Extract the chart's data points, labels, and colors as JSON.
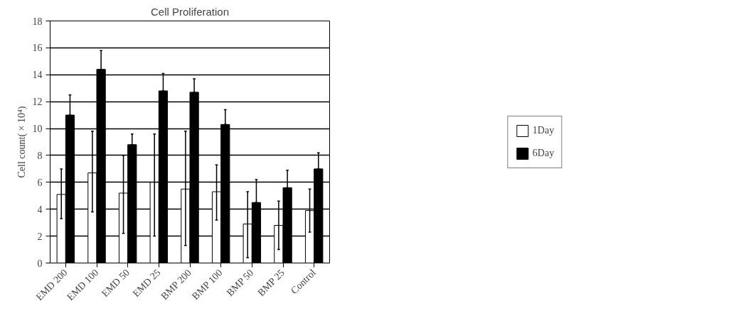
{
  "chart_data": {
    "type": "bar",
    "title": "Cell Proliferation",
    "ylabel": "Cell count( × 10⁴)",
    "categories": [
      "EMD 200",
      "EMD 100",
      "EMD 50",
      "EMD 25",
      "BMP 200",
      "BMP 100",
      "BMP 50",
      "BMP 25",
      "Control"
    ],
    "series": [
      {
        "name": "1Day",
        "color": "#ffffff",
        "values": [
          5.1,
          6.7,
          5.2,
          6.0,
          5.5,
          5.3,
          2.9,
          2.8,
          3.9
        ],
        "errors": [
          [
            3.3,
            7.0
          ],
          [
            3.8,
            9.8
          ],
          [
            2.2,
            8.0
          ],
          [
            2.0,
            9.6
          ],
          [
            1.3,
            9.8
          ],
          [
            3.2,
            7.3
          ],
          [
            0.4,
            5.3
          ],
          [
            1.0,
            4.6
          ],
          [
            2.3,
            5.5
          ]
        ]
      },
      {
        "name": "6Day",
        "color": "#000000",
        "values": [
          11.0,
          14.4,
          8.8,
          12.8,
          12.7,
          10.3,
          4.5,
          5.6,
          7.0
        ],
        "errors": [
          [
            11.0,
            12.5
          ],
          [
            14.4,
            15.8
          ],
          [
            8.8,
            9.6
          ],
          [
            12.8,
            14.1
          ],
          [
            12.7,
            13.7
          ],
          [
            10.3,
            11.4
          ],
          [
            4.5,
            6.2
          ],
          [
            5.6,
            6.9
          ],
          [
            7.0,
            8.2
          ]
        ]
      }
    ],
    "ylim": [
      0,
      18
    ],
    "yticks": [
      0,
      2,
      4,
      6,
      8,
      10,
      12,
      14,
      16,
      18
    ],
    "grid": "y",
    "legend": "right"
  }
}
